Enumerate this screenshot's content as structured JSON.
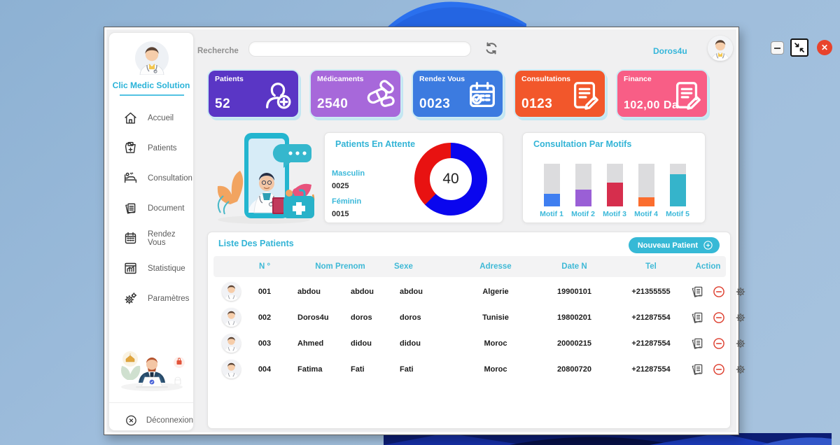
{
  "topbar": {
    "search_label": "Recherche",
    "search_value": "",
    "username": "Doros4u"
  },
  "sidebar": {
    "brand": "Clic Medic Solution",
    "items": [
      {
        "icon": "home-icon",
        "label": "Accueil"
      },
      {
        "icon": "patients-folder-icon",
        "label": "Patients"
      },
      {
        "icon": "bed-icon",
        "label": "Consultation"
      },
      {
        "icon": "documents-icon",
        "label": "Document"
      },
      {
        "icon": "calendar-icon",
        "label": "Rendez Vous"
      },
      {
        "icon": "statistics-icon",
        "label": "Statistique"
      },
      {
        "icon": "gears-icon",
        "label": "Paramètres"
      }
    ],
    "logout_label": "Déconnexion"
  },
  "stat_cards": [
    {
      "label": "Patients",
      "value": "52",
      "color": "#5a36c5",
      "icon": "patient-add-icon"
    },
    {
      "label": "Médicaments",
      "value": "2540",
      "color": "#a768da",
      "icon": "pills-icon"
    },
    {
      "label": "Rendez Vous",
      "value": "0023",
      "color": "#3c7be0",
      "icon": "calendar-check-icon"
    },
    {
      "label": "Consultations",
      "value": "0123",
      "color": "#f2572b",
      "icon": "document-edit-icon"
    },
    {
      "label": "Finance",
      "value": "102,00 Da",
      "color": "#f85e86",
      "icon": "document-edit-icon"
    }
  ],
  "waiting_panel": {
    "title": "Patients En Attente",
    "legend": [
      {
        "label": "Masculin",
        "value": "0025"
      },
      {
        "label": "Féminin",
        "value": "0015"
      }
    ],
    "center_total": "40"
  },
  "motifs_panel": {
    "title": "Consultation Par Motifs"
  },
  "patients_table": {
    "title": "Liste Des Patients",
    "new_patient_button": "Nouveau Patient",
    "columns": {
      "num": "N °",
      "nom_prenom": "Nom Prenom",
      "sexe": "Sexe",
      "adresse": "Adresse",
      "date_n": "Date N",
      "tel": "Tel",
      "action": "Action"
    },
    "rows": [
      {
        "num": "001",
        "nom": "abdou",
        "prenom": "abdou",
        "sexe": "abdou",
        "adresse": "Algerie",
        "date_n": "19900101",
        "tel": "+21355555"
      },
      {
        "num": "002",
        "nom": "Doros4u",
        "prenom": "doros",
        "sexe": "doros",
        "adresse": "Tunisie",
        "date_n": "19800201",
        "tel": "+21287554"
      },
      {
        "num": "003",
        "nom": "Ahmed",
        "prenom": "didou",
        "sexe": "didou",
        "adresse": "Moroc",
        "date_n": "20000215",
        "tel": "+21287554"
      },
      {
        "num": "004",
        "nom": "Fatima",
        "prenom": "Fati",
        "sexe": "Fati",
        "adresse": "Moroc",
        "date_n": "20800720",
        "tel": "+21287554"
      }
    ]
  },
  "chart_data": [
    {
      "type": "pie",
      "title": "Patients En Attente",
      "labels": [
        "Masculin",
        "Féminin"
      ],
      "values": [
        25,
        15
      ],
      "displayed_values": [
        "0025",
        "0015"
      ],
      "center_label": "40",
      "colors": [
        "#0a06ee",
        "#e81211"
      ],
      "donut": true,
      "legend_position": "left"
    },
    {
      "type": "bar",
      "title": "Consultation Par Motifs",
      "categories": [
        "Motif 1",
        "Motif 2",
        "Motif 3",
        "Motif 4",
        "Motif 5"
      ],
      "values": [
        30,
        40,
        55,
        21,
        76
      ],
      "ylabel": "fill percent of track",
      "ylim": [
        0,
        100
      ],
      "colors": [
        "#3f7ef0",
        "#9a5fd6",
        "#d62e4d",
        "#fb6d2e",
        "#35b4cb"
      ],
      "track_color": "#dcdcde",
      "grid": false,
      "legend_position": "none"
    }
  ],
  "colors": {
    "accent_cyan": "#35b7d6",
    "card_glow": "#c8eaf4",
    "close_red": "#e8432c",
    "title_cyan": "#33b4d6"
  }
}
